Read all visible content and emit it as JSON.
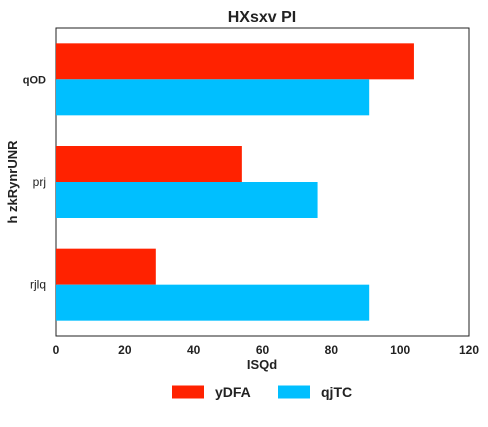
{
  "chart_data": {
    "type": "bar",
    "orientation": "horizontal",
    "title": "HXsxv PI",
    "xlabel": "ISQd",
    "ylabel": "h zkRynrUNR",
    "categories": [
      "qOD",
      "prj",
      "rjlq"
    ],
    "category_bold": [
      true,
      false,
      false
    ],
    "series": [
      {
        "name": "yDFA",
        "color": "#ff2200",
        "values": [
          104,
          54,
          29
        ]
      },
      {
        "name": "qjTC",
        "color": "#00bfff",
        "values": [
          91,
          76,
          91
        ]
      }
    ],
    "xlim": [
      0,
      120
    ],
    "xticks": [
      "0",
      "20",
      "40",
      "60",
      "80",
      "100",
      "120"
    ],
    "grid": false,
    "legend_position": "bottom-center"
  }
}
